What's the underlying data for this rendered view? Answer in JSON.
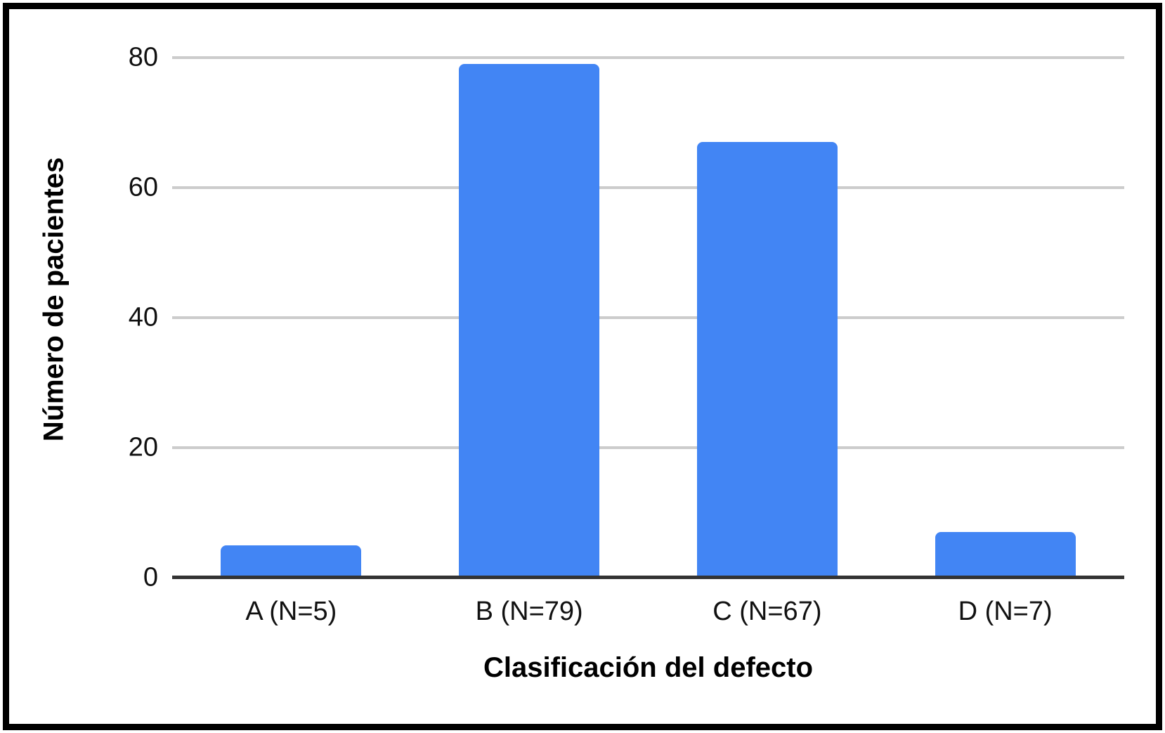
{
  "chart_data": {
    "type": "bar",
    "categories": [
      "A (N=5)",
      "B (N=79)",
      "C (N=67)",
      "D (N=7)"
    ],
    "values": [
      5,
      79,
      67,
      7
    ],
    "title": "",
    "xlabel": "Clasificación del defecto",
    "ylabel": "Número de pacientes",
    "ylim": [
      0,
      80
    ],
    "yticks": [
      0,
      20,
      40,
      60,
      80
    ],
    "grid": true,
    "legend": false,
    "bar_color": "#4285F4",
    "gridline_color": "#cccccc",
    "axis_color": "#333333",
    "frame_border_color": "#000000",
    "text_color": "#000000"
  }
}
